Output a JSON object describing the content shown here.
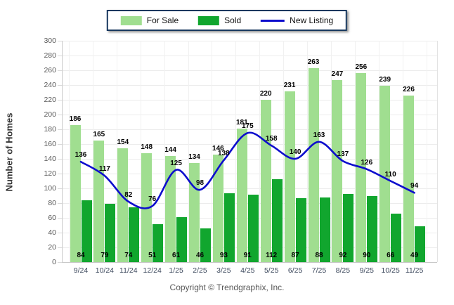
{
  "legend": {
    "items": [
      {
        "label": "For Sale",
        "color": "#A0DE90",
        "kind": "swatch"
      },
      {
        "label": "Sold",
        "color": "#11A62E",
        "kind": "swatch"
      },
      {
        "label": "New Listing",
        "color": "#0D0DCD",
        "kind": "line"
      }
    ]
  },
  "y_axis_title": "Number of Homes",
  "footer": "Copyright © Trendgraphix, Inc.",
  "chart_data": {
    "type": "bar",
    "title": "",
    "xlabel": "",
    "ylabel": "Number of Homes",
    "ylim": [
      0,
      300
    ],
    "ytick_step": 20,
    "grid": true,
    "legend_position": "top",
    "categories": [
      "9/24",
      "10/24",
      "11/24",
      "12/24",
      "1/25",
      "2/25",
      "3/25",
      "4/25",
      "5/25",
      "6/25",
      "7/25",
      "8/25",
      "9/25",
      "10/25",
      "11/25"
    ],
    "series": [
      {
        "name": "For Sale",
        "type": "bar",
        "color": "#A0DE90",
        "values": [
          186,
          165,
          154,
          148,
          144,
          134,
          146,
          181,
          220,
          231,
          263,
          247,
          256,
          239,
          226
        ]
      },
      {
        "name": "Sold",
        "type": "bar",
        "color": "#11A62E",
        "values": [
          84,
          79,
          74,
          51,
          61,
          46,
          93,
          91,
          112,
          87,
          88,
          92,
          90,
          66,
          49
        ]
      },
      {
        "name": "New Listing",
        "type": "line",
        "color": "#0D0DCD",
        "values": [
          136,
          117,
          82,
          76,
          125,
          98,
          138,
          175,
          158,
          140,
          163,
          137,
          126,
          110,
          94
        ]
      }
    ]
  }
}
